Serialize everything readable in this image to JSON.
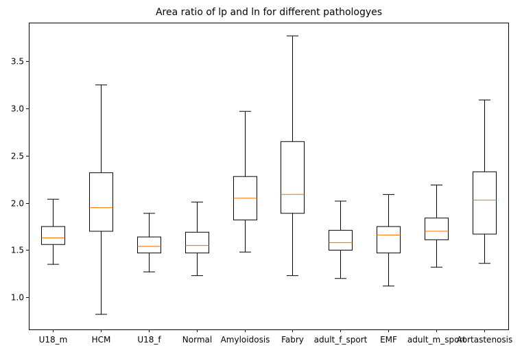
{
  "chart_data": {
    "type": "boxplot",
    "title": "Area ratio of lp and ln for different pathologyes",
    "xlabel": "",
    "ylabel": "",
    "ylim": [
      0.66,
      3.91
    ],
    "yticks": [
      1.0,
      1.5,
      2.0,
      2.5,
      3.0,
      3.5
    ],
    "ytick_labels": [
      "1.0",
      "1.5",
      "2.0",
      "2.5",
      "3.0",
      "3.5"
    ],
    "grid": false,
    "colors": {
      "box": "#000000",
      "median": "#ff7f0e"
    },
    "categories": [
      "U18_m",
      "HCM",
      "U18_f",
      "Normal",
      "Amyloidosis",
      "Fabry",
      "adult_f_sport",
      "EMF",
      "adult_m_sport",
      "Aortastenosis"
    ],
    "boxes": [
      {
        "label": "U18_m",
        "whisker_low": 1.35,
        "q1": 1.56,
        "median": 1.63,
        "q3": 1.75,
        "whisker_high": 2.04
      },
      {
        "label": "HCM",
        "whisker_low": 0.82,
        "q1": 1.7,
        "median": 1.95,
        "q3": 2.32,
        "whisker_high": 3.25
      },
      {
        "label": "U18_f",
        "whisker_low": 1.27,
        "q1": 1.47,
        "median": 1.54,
        "q3": 1.64,
        "whisker_high": 1.89
      },
      {
        "label": "Normal",
        "whisker_low": 1.23,
        "q1": 1.47,
        "median": 1.55,
        "q3": 1.69,
        "whisker_high": 2.01
      },
      {
        "label": "Amyloidosis",
        "whisker_low": 1.48,
        "q1": 1.82,
        "median": 2.05,
        "q3": 2.28,
        "whisker_high": 2.97
      },
      {
        "label": "Fabry",
        "whisker_low": 1.23,
        "q1": 1.89,
        "median": 2.09,
        "q3": 2.65,
        "whisker_high": 3.77
      },
      {
        "label": "adult_f_sport",
        "whisker_low": 1.2,
        "q1": 1.5,
        "median": 1.58,
        "q3": 1.71,
        "whisker_high": 2.02
      },
      {
        "label": "EMF",
        "whisker_low": 1.12,
        "q1": 1.47,
        "median": 1.66,
        "q3": 1.75,
        "whisker_high": 2.09
      },
      {
        "label": "adult_m_sport",
        "whisker_low": 1.32,
        "q1": 1.61,
        "median": 1.7,
        "q3": 1.84,
        "whisker_high": 2.19
      },
      {
        "label": "Aortastenosis",
        "whisker_low": 1.36,
        "q1": 1.67,
        "median": 2.03,
        "q3": 2.33,
        "whisker_high": 3.09
      }
    ]
  }
}
